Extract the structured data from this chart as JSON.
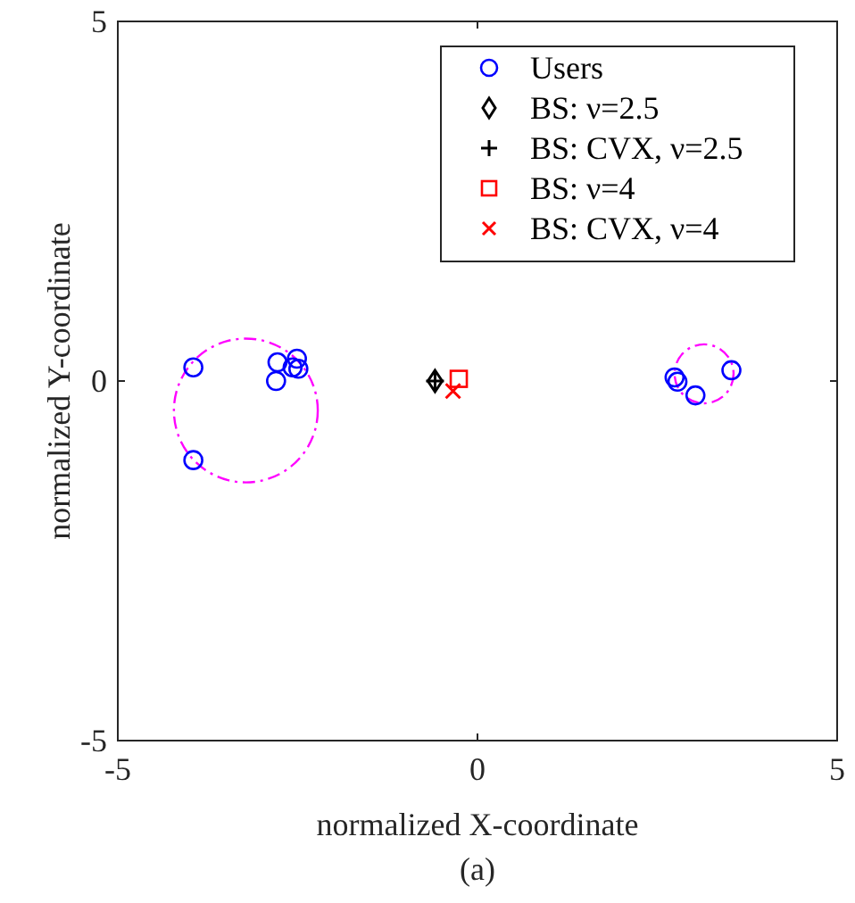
{
  "chart_data": {
    "type": "scatter",
    "xlabel": "normalized X-coordinate",
    "ylabel": "normalized Y-coordinate",
    "xlim": [
      -5,
      5
    ],
    "ylim": [
      -5,
      5
    ],
    "xticks": [
      -5,
      0,
      5
    ],
    "yticks": [
      -5,
      0,
      5
    ],
    "grid": false,
    "legend": "top right",
    "annotations": [
      "(a)"
    ],
    "series": [
      {
        "name": "Users",
        "marker": "circle",
        "color": "#0000ff",
        "x": [
          -3.95,
          -3.95,
          -2.78,
          -2.8,
          -2.57,
          -2.51,
          -2.49,
          2.74,
          2.78,
          3.03,
          3.53
        ],
        "values": [
          0.19,
          -1.1,
          0.26,
          0.0,
          0.19,
          0.31,
          0.17,
          0.05,
          -0.01,
          -0.2,
          0.15
        ]
      },
      {
        "name": "BS: ν=2.5",
        "marker": "diamond",
        "color": "#000000",
        "x": [
          -0.59
        ],
        "values": [
          0.0
        ]
      },
      {
        "name": "BS: CVX, ν=2.5",
        "marker": "cross",
        "color": "#000000",
        "x": [
          -0.59
        ],
        "values": [
          0.0
        ]
      },
      {
        "name": "BS: ν=4",
        "marker": "square",
        "color": "#ff0000",
        "x": [
          -0.26
        ],
        "values": [
          0.03
        ]
      },
      {
        "name": "BS: CVX, ν=4",
        "marker": "x",
        "color": "#ff0000",
        "x": [
          -0.34
        ],
        "values": [
          -0.14
        ]
      }
    ]
  }
}
